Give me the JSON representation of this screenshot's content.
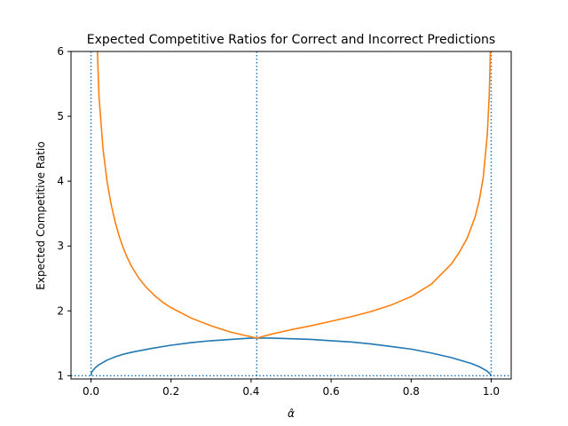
{
  "chart_data": {
    "type": "line",
    "title": "Expected Competitive Ratios for Correct and Incorrect Predictions",
    "xlabel": "α̂",
    "ylabel": "Expected Competitive Ratio",
    "xlim": [
      -0.05,
      1.05
    ],
    "ylim": [
      0.95,
      6.0
    ],
    "xticks": [
      "0.0",
      "0.2",
      "0.4",
      "0.6",
      "0.8",
      "1.0"
    ],
    "yticks": [
      "1",
      "2",
      "3",
      "4",
      "5",
      "6"
    ],
    "grid": false,
    "colors": {
      "series1": "#1f77b4",
      "series2": "#ff7f0e",
      "reference": "#1f77b4"
    },
    "series": [
      {
        "x": [
          0.0,
          0.002,
          0.01,
          0.02,
          0.04,
          0.06,
          0.08,
          0.1,
          0.15,
          0.2,
          0.25,
          0.3,
          0.35,
          0.4,
          0.4142,
          0.45,
          0.5,
          0.55,
          0.6,
          0.65,
          0.7,
          0.75,
          0.8,
          0.85,
          0.9,
          0.95,
          0.97,
          0.99,
          0.997,
          1.0
        ],
        "y": [
          1.0,
          1.06,
          1.12,
          1.17,
          1.24,
          1.29,
          1.33,
          1.36,
          1.42,
          1.47,
          1.51,
          1.54,
          1.56,
          1.58,
          1.58,
          1.58,
          1.57,
          1.56,
          1.54,
          1.52,
          1.49,
          1.45,
          1.41,
          1.35,
          1.28,
          1.19,
          1.14,
          1.07,
          1.03,
          1.0
        ]
      },
      {
        "x": [
          0.016,
          0.02,
          0.03,
          0.04,
          0.05,
          0.06,
          0.07,
          0.08,
          0.09,
          0.1,
          0.12,
          0.14,
          0.16,
          0.18,
          0.2,
          0.25,
          0.3,
          0.35,
          0.4,
          0.4142,
          0.45,
          0.5,
          0.55,
          0.6,
          0.65,
          0.7,
          0.75,
          0.8,
          0.85,
          0.9,
          0.92,
          0.94,
          0.96,
          0.97,
          0.98,
          0.99,
          0.995,
          0.998
        ],
        "y": [
          6.0,
          5.3,
          4.5,
          4.0,
          3.65,
          3.38,
          3.16,
          2.98,
          2.83,
          2.7,
          2.5,
          2.35,
          2.23,
          2.13,
          2.05,
          1.89,
          1.77,
          1.67,
          1.6,
          1.58,
          1.64,
          1.71,
          1.77,
          1.84,
          1.91,
          1.99,
          2.09,
          2.22,
          2.41,
          2.72,
          2.9,
          3.12,
          3.45,
          3.7,
          4.05,
          4.7,
          5.3,
          6.0
        ]
      }
    ],
    "reference_lines": {
      "vertical_x": [
        0.0,
        0.4142,
        1.0
      ],
      "horizontal_y": [
        1.0
      ]
    }
  }
}
